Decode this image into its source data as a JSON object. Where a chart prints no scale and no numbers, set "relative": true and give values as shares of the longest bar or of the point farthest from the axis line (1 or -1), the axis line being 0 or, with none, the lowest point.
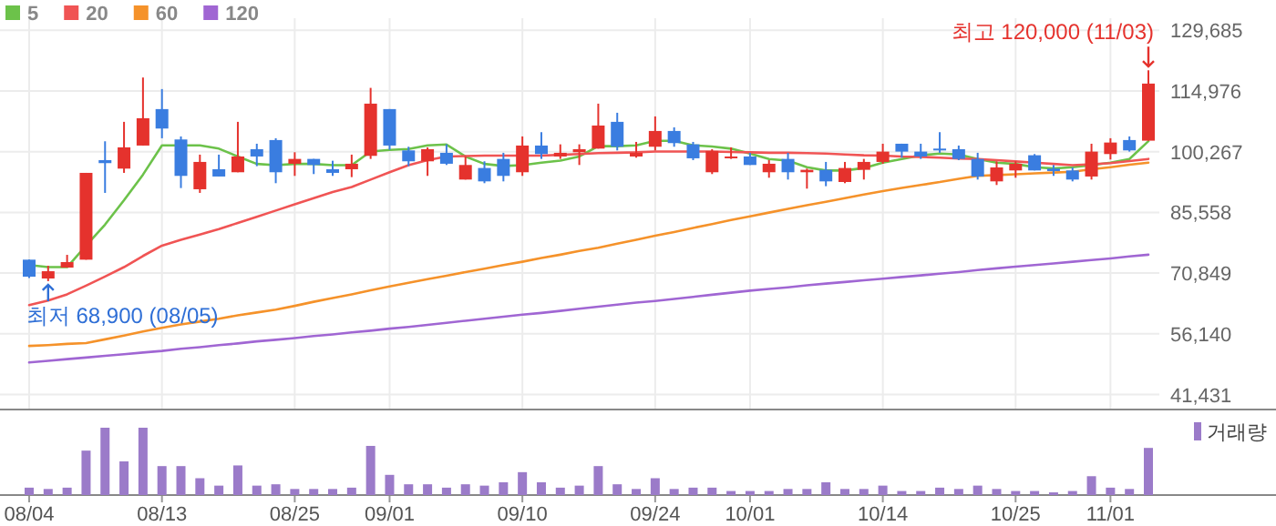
{
  "chart_data": [
    {
      "type": "candlestick",
      "categories": [
        null,
        null,
        null,
        null,
        null,
        null,
        null,
        null,
        null,
        null,
        null,
        null,
        null,
        null,
        null,
        null,
        null,
        null,
        null,
        null,
        null,
        null,
        null,
        null,
        null,
        null,
        null,
        null,
        null,
        null,
        null,
        null,
        null,
        null,
        null,
        null,
        null,
        null,
        null,
        null,
        null,
        null,
        null,
        null,
        null,
        null,
        null,
        null,
        null,
        null,
        null,
        null,
        null,
        null,
        null,
        null,
        null,
        null,
        null,
        null
      ],
      "ohlc": [
        [
          74100,
          74100,
          69680,
          69980
        ],
        [
          69540,
          72620,
          68900,
          71300
        ],
        [
          72180,
          75270,
          72180,
          73510
        ],
        [
          74100,
          95130,
          74100,
          95130
        ],
        [
          98220,
          102780,
          90280,
          97490
        ],
        [
          96160,
          107490,
          95130,
          101310
        ],
        [
          101750,
          118230,
          101750,
          108370
        ],
        [
          110580,
          115430,
          103520,
          105870
        ],
        [
          103220,
          103960,
          91450,
          94400
        ],
        [
          91160,
          99550,
          90280,
          97780
        ],
        [
          96010,
          99550,
          94250,
          94250
        ],
        [
          95280,
          107490,
          95280,
          99100
        ],
        [
          100870,
          102190,
          96750,
          99100
        ],
        [
          103080,
          103520,
          92630,
          95280
        ],
        [
          97340,
          100130,
          94400,
          98510
        ],
        [
          98510,
          98510,
          94840,
          97040
        ],
        [
          96010,
          98070,
          94400,
          95130
        ],
        [
          96010,
          99550,
          94100,
          97340
        ],
        [
          99250,
          115720,
          98510,
          111900
        ],
        [
          110580,
          110580,
          100720,
          101750
        ],
        [
          100570,
          101460,
          96750,
          97930
        ],
        [
          97930,
          101310,
          94400,
          100870
        ],
        [
          99990,
          102040,
          97040,
          97340
        ],
        [
          93510,
          99100,
          93510,
          97040
        ],
        [
          96310,
          97930,
          92630,
          93070
        ],
        [
          98510,
          99990,
          93070,
          94400
        ],
        [
          95280,
          103960,
          94400,
          101750
        ],
        [
          101750,
          104990,
          98510,
          99690
        ],
        [
          99100,
          102040,
          98510,
          99990
        ],
        [
          100130,
          102040,
          97040,
          100870
        ],
        [
          101010,
          111900,
          101010,
          106600
        ],
        [
          107490,
          109690,
          100570,
          101460
        ],
        [
          99100,
          102630,
          98810,
          99990
        ],
        [
          101460,
          108810,
          100570,
          105280
        ],
        [
          105280,
          106160,
          101460,
          102340
        ],
        [
          102040,
          102630,
          98220,
          98660
        ],
        [
          95280,
          100870,
          94840,
          100430
        ],
        [
          98810,
          101310,
          98510,
          99100
        ],
        [
          99100,
          99990,
          97040,
          97040
        ],
        [
          95280,
          98220,
          93950,
          97340
        ],
        [
          98510,
          99990,
          93510,
          95280
        ],
        [
          95280,
          96160,
          91310,
          95870
        ],
        [
          95870,
          97780,
          91900,
          93070
        ],
        [
          92920,
          97780,
          92630,
          96310
        ],
        [
          95870,
          98510,
          93510,
          97780
        ],
        [
          97780,
          102190,
          97340,
          100280
        ],
        [
          102190,
          102190,
          98810,
          100280
        ],
        [
          100280,
          102190,
          98510,
          99100
        ],
        [
          101010,
          104990,
          99990,
          100570
        ],
        [
          100870,
          101750,
          98220,
          98510
        ],
        [
          98510,
          99990,
          93510,
          94250
        ],
        [
          93070,
          97930,
          92190,
          96450
        ],
        [
          95720,
          97930,
          93950,
          97340
        ],
        [
          99400,
          99690,
          95720,
          95720
        ],
        [
          96160,
          97040,
          94400,
          95570
        ],
        [
          95720,
          96450,
          93070,
          93510
        ],
        [
          94250,
          102190,
          93510,
          100280
        ],
        [
          99690,
          103520,
          98370,
          102480
        ],
        [
          103080,
          103960,
          100280,
          100570
        ],
        [
          102930,
          120000,
          102930,
          116760
        ]
      ],
      "colors": [
        "#3a7de0",
        "#e5322d",
        "#e5322d",
        "#e5322d",
        "#3a7de0",
        "#e5322d",
        "#e5322d",
        "#3a7de0",
        "#3a7de0",
        "#e5322d",
        "#3a7de0",
        "#e5322d",
        "#3a7de0",
        "#3a7de0",
        "#e5322d",
        "#3a7de0",
        "#3a7de0",
        "#e5322d",
        "#e5322d",
        "#3a7de0",
        "#3a7de0",
        "#e5322d",
        "#3a7de0",
        "#e5322d",
        "#3a7de0",
        "#3a7de0",
        "#e5322d",
        "#3a7de0",
        "#e5322d",
        "#e5322d",
        "#e5322d",
        "#3a7de0",
        "#e5322d",
        "#e5322d",
        "#3a7de0",
        "#3a7de0",
        "#e5322d",
        "#e5322d",
        "#3a7de0",
        "#e5322d",
        "#3a7de0",
        "#e5322d",
        "#3a7de0",
        "#e5322d",
        "#e5322d",
        "#e5322d",
        "#3a7de0",
        "#3a7de0",
        "#3a7de0",
        "#3a7de0",
        "#3a7de0",
        "#e5322d",
        "#e5322d",
        "#3a7de0",
        "#3a7de0",
        "#3a7de0",
        "#e5322d",
        "#e5322d",
        "#3a7de0",
        "#e5322d"
      ],
      "series": [
        {
          "name": "5",
          "type": "line",
          "color": "#6cc24a",
          "values": [
            72800,
            72300,
            72300,
            77500,
            82600,
            88500,
            94700,
            101800,
            101800,
            101800,
            101000,
            99100,
            97300,
            97000,
            97300,
            97300,
            97000,
            97000,
            100300,
            100700,
            100900,
            101800,
            102000,
            99100,
            97300,
            96800,
            97000,
            97600,
            98100,
            99100,
            101600,
            101600,
            101800,
            102900,
            102900,
            101800,
            101500,
            101000,
            99800,
            98500,
            98100,
            96500,
            95700,
            95700,
            96300,
            97600,
            98500,
            99400,
            99800,
            99600,
            98500,
            97600,
            97300,
            96500,
            96200,
            96500,
            97000,
            97600,
            98500,
            102800
          ]
        },
        {
          "name": "20",
          "type": "line",
          "color": "#f05454",
          "values": [
            63100,
            64200,
            65700,
            67800,
            70000,
            72300,
            75000,
            77500,
            78900,
            80200,
            81500,
            83000,
            84500,
            86000,
            87500,
            89000,
            90500,
            91700,
            93500,
            95300,
            97000,
            98200,
            99100,
            99200,
            99300,
            99300,
            99300,
            99300,
            99500,
            99700,
            99900,
            100000,
            100100,
            100300,
            100300,
            100300,
            100300,
            100200,
            100100,
            100000,
            100000,
            99900,
            99800,
            99600,
            99400,
            99300,
            99100,
            99000,
            98800,
            98600,
            98500,
            98200,
            97900,
            97600,
            97300,
            97000,
            97200,
            97500,
            98000,
            98500
          ]
        },
        {
          "name": "60",
          "type": "line",
          "color": "#f5922a",
          "values": [
            53200,
            53400,
            53700,
            53900,
            54800,
            55700,
            56700,
            57600,
            58400,
            59100,
            59800,
            60600,
            61300,
            62000,
            62900,
            63900,
            64800,
            65700,
            66700,
            67600,
            68500,
            69400,
            70200,
            71100,
            71900,
            72800,
            73600,
            74500,
            75300,
            76200,
            77000,
            78000,
            78900,
            79900,
            80800,
            81800,
            82700,
            83700,
            84600,
            85500,
            86400,
            87300,
            88100,
            89000,
            89900,
            90700,
            91500,
            92200,
            92900,
            93700,
            94400,
            94600,
            94800,
            95000,
            95200,
            95400,
            96000,
            96500,
            97100,
            97600
          ]
        },
        {
          "name": "120",
          "type": "line",
          "color": "#a066d3",
          "values": [
            49200,
            49600,
            50000,
            50400,
            50800,
            51200,
            51600,
            52000,
            52500,
            52900,
            53400,
            53800,
            54300,
            54700,
            55100,
            55600,
            56000,
            56500,
            56900,
            57400,
            57800,
            58300,
            58800,
            59300,
            59800,
            60300,
            60800,
            61200,
            61700,
            62200,
            62700,
            63200,
            63700,
            64100,
            64600,
            65100,
            65600,
            66100,
            66600,
            67000,
            67400,
            67900,
            68300,
            68700,
            69100,
            69500,
            69900,
            70300,
            70700,
            71100,
            71600,
            72000,
            72400,
            72800,
            73200,
            73600,
            74000,
            74400,
            74900,
            75300
          ]
        }
      ],
      "ylim": [
        37800,
        132600
      ],
      "yticks": [
        {
          "value": 41431,
          "label": "41,431"
        },
        {
          "value": 56140,
          "label": "56,140"
        },
        {
          "value": 70849,
          "label": "70,849"
        },
        {
          "value": 85558,
          "label": "85,558"
        },
        {
          "value": 100267,
          "label": "100,267"
        },
        {
          "value": 114976,
          "label": "114,976"
        },
        {
          "value": 129685,
          "label": "129,685"
        }
      ],
      "grid": true,
      "legend": "top left",
      "tick_labels": "y",
      "annotations": [
        "최고 120,000 (11/03)",
        "최저 68,900 (08/05)"
      ]
    },
    {
      "type": "bar",
      "categories": [
        "08/04",
        null,
        null,
        null,
        null,
        null,
        null,
        "08/13",
        null,
        null,
        null,
        null,
        null,
        null,
        "08/25",
        null,
        null,
        null,
        null,
        "09/01",
        null,
        null,
        null,
        null,
        null,
        null,
        "09/10",
        null,
        null,
        null,
        null,
        null,
        null,
        "09/24",
        null,
        null,
        null,
        null,
        "10/01",
        null,
        null,
        null,
        null,
        null,
        null,
        "10/14",
        null,
        null,
        null,
        null,
        null,
        null,
        "10/25",
        null,
        null,
        null,
        null,
        "11/01",
        null,
        null
      ],
      "relative": true,
      "legend": "top right",
      "tick_labels": "x",
      "series": [
        {
          "name": "거래량",
          "color": "#9b7bc9",
          "values": [
            0.11,
            0.09,
            0.11,
            0.66,
            1,
            0.5,
            1,
            0.43,
            0.43,
            0.25,
            0.14,
            0.44,
            0.14,
            0.16,
            0.09,
            0.09,
            0.09,
            0.11,
            0.73,
            0.3,
            0.16,
            0.16,
            0.11,
            0.16,
            0.14,
            0.19,
            0.34,
            0.19,
            0.11,
            0.14,
            0.43,
            0.16,
            0.09,
            0.25,
            0.09,
            0.11,
            0.11,
            0.06,
            0.06,
            0.06,
            0.09,
            0.09,
            0.19,
            0.09,
            0.09,
            0.14,
            0.06,
            0.06,
            0.11,
            0.09,
            0.14,
            0.09,
            0.06,
            0.06,
            0.04,
            0.06,
            0.28,
            0.11,
            0.09,
            0.7
          ]
        }
      ]
    }
  ]
}
